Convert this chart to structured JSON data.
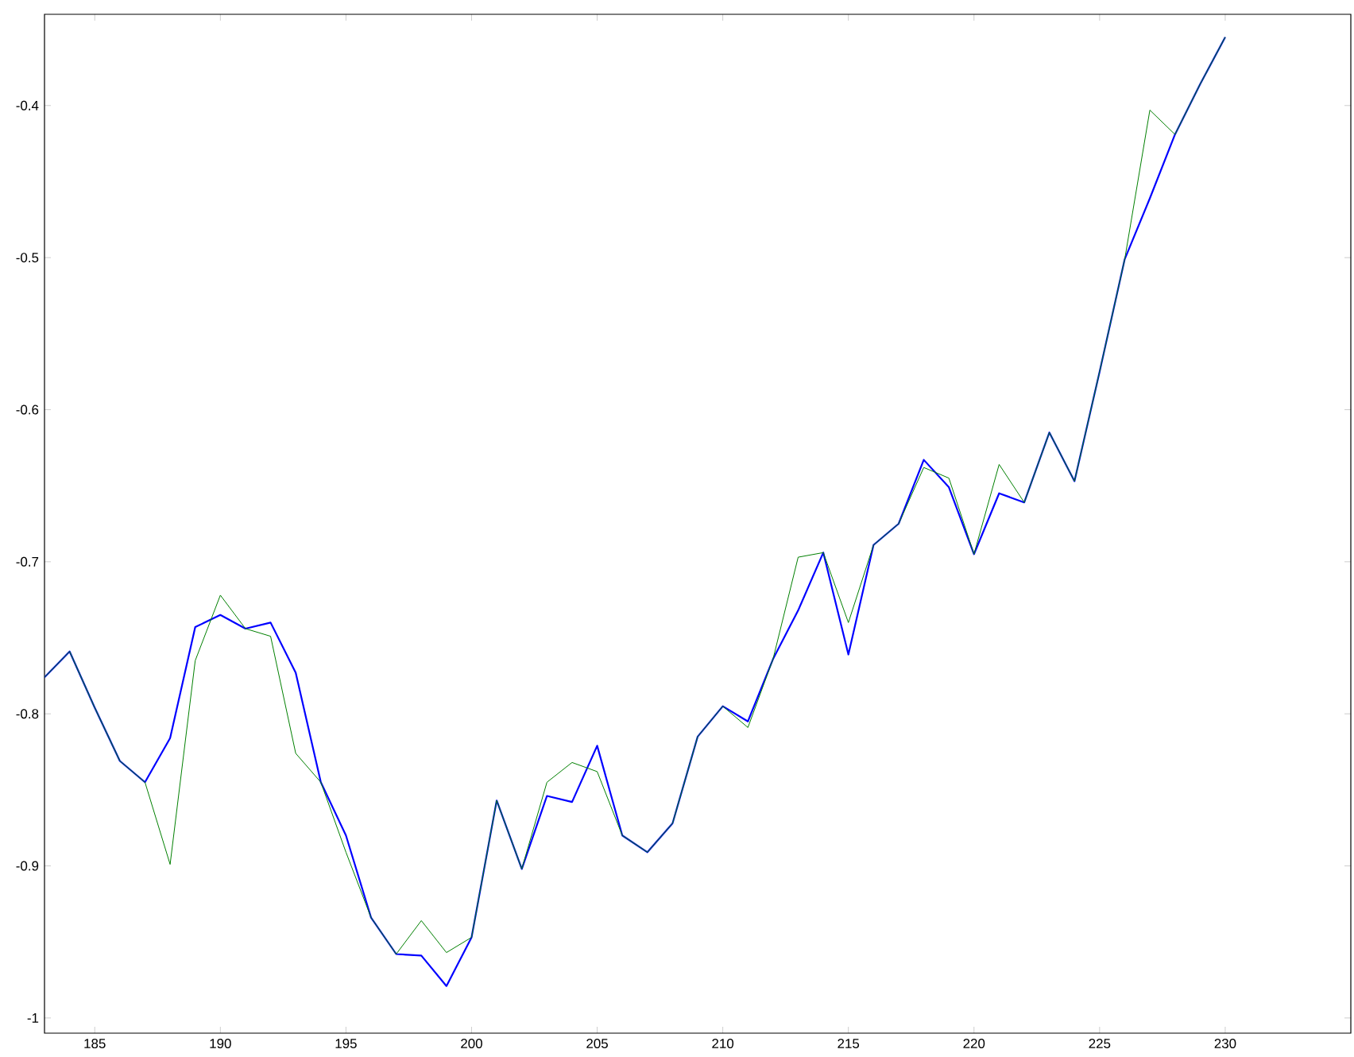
{
  "chart_data": {
    "type": "line",
    "x": [
      183,
      184,
      185,
      186,
      187,
      188,
      189,
      190,
      191,
      192,
      193,
      194,
      195,
      196,
      197,
      198,
      199,
      200,
      201,
      202,
      203,
      204,
      205,
      206,
      207,
      208,
      209,
      210,
      211,
      212,
      213,
      214,
      215,
      216,
      217,
      218,
      219,
      220,
      221,
      222,
      223,
      224,
      225,
      226,
      227,
      228,
      229,
      230
    ],
    "series": [
      {
        "color": "#0000ff",
        "values": [
          -0.776,
          -0.759,
          -0.796,
          -0.831,
          -0.845,
          -0.816,
          -0.743,
          -0.735,
          -0.744,
          -0.74,
          -0.773,
          -0.845,
          -0.88,
          -0.934,
          -0.958,
          -0.959,
          -0.979,
          -0.947,
          -0.857,
          -0.902,
          -0.854,
          -0.858,
          -0.821,
          -0.88,
          -0.891,
          -0.872,
          -0.815,
          -0.795,
          -0.805,
          -0.764,
          -0.732,
          -0.694,
          -0.761,
          -0.689,
          -0.675,
          -0.633,
          -0.651,
          -0.695,
          -0.655,
          -0.661,
          -0.615,
          -0.647,
          -0.575,
          -0.501,
          -0.461,
          -0.419,
          -0.386,
          -0.355
        ]
      },
      {
        "color": "#008000",
        "values": [
          -0.776,
          -0.759,
          -0.796,
          -0.831,
          -0.845,
          -0.899,
          -0.765,
          -0.722,
          -0.744,
          -0.749,
          -0.826,
          -0.845,
          -0.891,
          -0.934,
          -0.958,
          -0.936,
          -0.957,
          -0.947,
          -0.857,
          -0.902,
          -0.845,
          -0.832,
          -0.838,
          -0.88,
          -0.891,
          -0.872,
          -0.815,
          -0.795,
          -0.809,
          -0.764,
          -0.697,
          -0.694,
          -0.74,
          -0.689,
          -0.675,
          -0.638,
          -0.645,
          -0.695,
          -0.636,
          -0.661,
          -0.615,
          -0.647,
          -0.575,
          -0.501,
          -0.403,
          -0.419,
          -0.386,
          -0.355
        ]
      }
    ],
    "xlim": [
      183,
      235
    ],
    "ylim": [
      -1.01,
      -0.34
    ],
    "xticks": [
      185,
      190,
      195,
      200,
      205,
      210,
      215,
      220,
      225,
      230
    ],
    "yticks": [
      -1,
      -0.9,
      -0.8,
      -0.7,
      -0.6,
      -0.5,
      -0.4
    ],
    "grid": false,
    "marker": "none",
    "line_style": "solid"
  }
}
